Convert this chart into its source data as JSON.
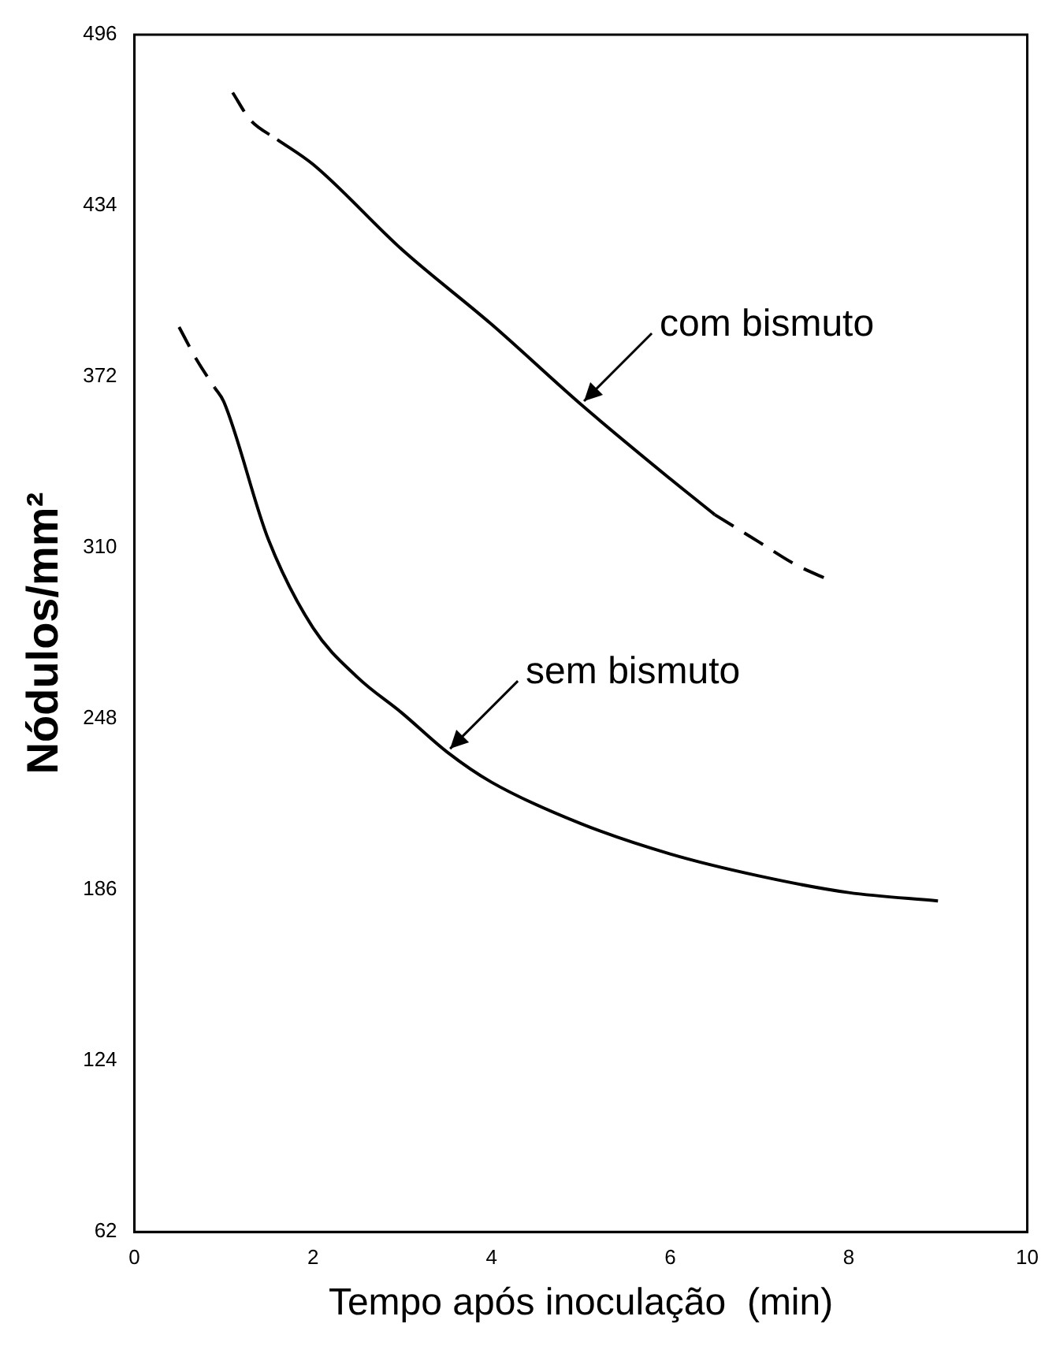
{
  "chart_data": {
    "type": "line",
    "xlabel": "Tempo após inoculação  (min)",
    "ylabel": "Nódulos/mm²",
    "xlim": [
      0,
      10
    ],
    "xticks": [
      0,
      2,
      4,
      6,
      8,
      10
    ],
    "ylim": [
      62,
      496
    ],
    "yticks": [
      62,
      124,
      186,
      248,
      310,
      372,
      434,
      496
    ],
    "grid": false,
    "legend": false,
    "marker": "none",
    "series": [
      {
        "color": "#000000",
        "line_style": "dashed",
        "x": [
          1.1,
          1.3,
          1.6
        ],
        "values": [
          475,
          465,
          458
        ]
      },
      {
        "color": "#000000",
        "line_style": "solid",
        "x": [
          1.6,
          2,
          3,
          4,
          5,
          6,
          6.5
        ],
        "values": [
          458,
          449,
          418,
          391,
          362,
          335,
          322
        ]
      },
      {
        "color": "#000000",
        "line_style": "dashed",
        "x": [
          6.5,
          7,
          7.4,
          7.8
        ],
        "values": [
          322,
          312,
          304,
          298
        ]
      },
      {
        "color": "#000000",
        "line_style": "dashed",
        "x": [
          0.5,
          0.7,
          0.9
        ],
        "values": [
          390,
          378,
          368
        ]
      },
      {
        "color": "#000000",
        "line_style": "solid",
        "x": [
          0.9,
          1,
          1.5,
          2,
          2.5,
          3,
          3.5,
          4,
          5,
          6,
          7,
          8,
          9
        ],
        "values": [
          368,
          363,
          313,
          281,
          263,
          250,
          236,
          225,
          210,
          199,
          191,
          185,
          182
        ]
      }
    ],
    "annotations": [
      {
        "text": "com bismuto",
        "x": 5,
        "y": 362
      },
      {
        "text": "sem bismuto",
        "x": 3.5,
        "y": 236
      }
    ]
  }
}
